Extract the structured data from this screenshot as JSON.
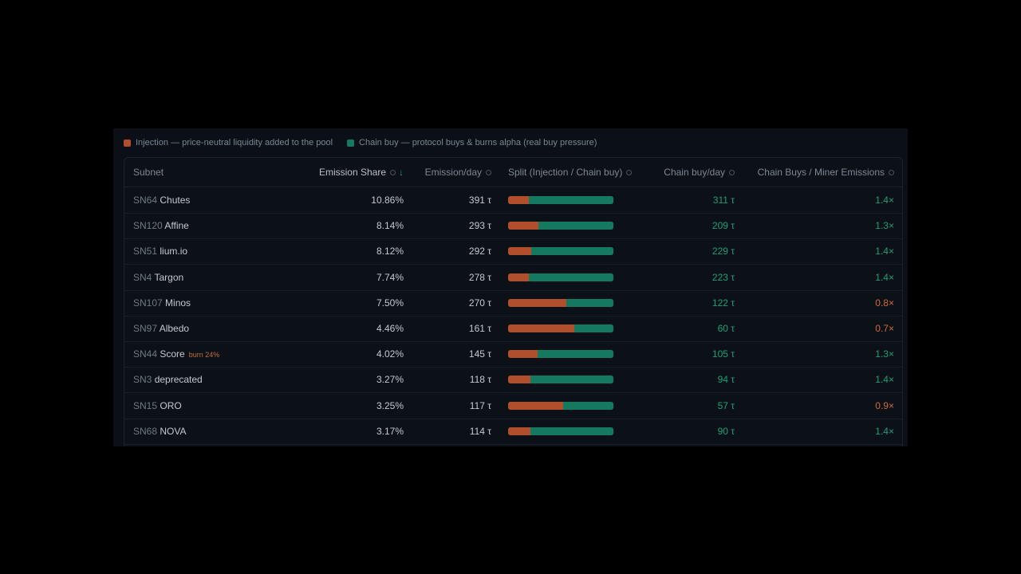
{
  "legend": {
    "injection_label": "Injection — price-neutral liquidity added to the pool",
    "chain_buy_label": "Chain buy — protocol buys & burns alpha (real buy pressure)",
    "injection_color": "#b14e2c",
    "chain_buy_color": "#14795e"
  },
  "columns": {
    "subnet": "Subnet",
    "emission_share": "Emission Share",
    "emission_day": "Emission/day",
    "split": "Split (Injection / Chain buy)",
    "chain_buy_day": "Chain buy/day",
    "ratio": "Chain Buys / Miner Emissions",
    "sort_icon": "arrow-down-icon",
    "info_icon": "info-icon"
  },
  "rows": [
    {
      "num": "SN64",
      "name": "Chutes",
      "burn": "",
      "share": "10.86%",
      "emission": "391 τ",
      "injection_fraction": 0.2,
      "chain_buy": "311 τ",
      "ratio": "1.4×",
      "ratio_status": "good"
    },
    {
      "num": "SN120",
      "name": "Affine",
      "burn": "",
      "share": "8.14%",
      "emission": "293 τ",
      "injection_fraction": 0.29,
      "chain_buy": "209 τ",
      "ratio": "1.3×",
      "ratio_status": "good"
    },
    {
      "num": "SN51",
      "name": "lium.io",
      "burn": "",
      "share": "8.12%",
      "emission": "292 τ",
      "injection_fraction": 0.22,
      "chain_buy": "229 τ",
      "ratio": "1.4×",
      "ratio_status": "good"
    },
    {
      "num": "SN4",
      "name": "Targon",
      "burn": "",
      "share": "7.74%",
      "emission": "278 τ",
      "injection_fraction": 0.2,
      "chain_buy": "223 τ",
      "ratio": "1.4×",
      "ratio_status": "good"
    },
    {
      "num": "SN107",
      "name": "Minos",
      "burn": "",
      "share": "7.50%",
      "emission": "270 τ",
      "injection_fraction": 0.55,
      "chain_buy": "122 τ",
      "ratio": "0.8×",
      "ratio_status": "bad"
    },
    {
      "num": "SN97",
      "name": "Albedo",
      "burn": "",
      "share": "4.46%",
      "emission": "161 τ",
      "injection_fraction": 0.63,
      "chain_buy": "60 τ",
      "ratio": "0.7×",
      "ratio_status": "bad"
    },
    {
      "num": "SN44",
      "name": "Score",
      "burn": "burn 24%",
      "share": "4.02%",
      "emission": "145 τ",
      "injection_fraction": 0.28,
      "chain_buy": "105 τ",
      "ratio": "1.3×",
      "ratio_status": "good"
    },
    {
      "num": "SN3",
      "name": "deprecated",
      "burn": "",
      "share": "3.27%",
      "emission": "118 τ",
      "injection_fraction": 0.21,
      "chain_buy": "94 τ",
      "ratio": "1.4×",
      "ratio_status": "good"
    },
    {
      "num": "SN15",
      "name": "ORO",
      "burn": "",
      "share": "3.25%",
      "emission": "117 τ",
      "injection_fraction": 0.52,
      "chain_buy": "57 τ",
      "ratio": "0.9×",
      "ratio_status": "bad"
    },
    {
      "num": "SN68",
      "name": "NOVA",
      "burn": "",
      "share": "3.17%",
      "emission": "114 τ",
      "injection_fraction": 0.21,
      "chain_buy": "90 τ",
      "ratio": "1.4×",
      "ratio_status": "good"
    }
  ]
}
